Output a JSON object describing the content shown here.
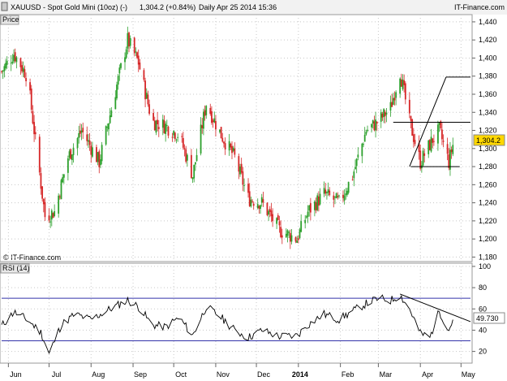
{
  "header": {
    "instrument": "XAUUSD - Spot Gold Mini (10oz) (-)",
    "quote": "1,304.2 (+0.84%)",
    "meta": "Daily  Apr 25 2014 15:36",
    "source": "IT-Finance.com"
  },
  "price_panel": {
    "label": "Price",
    "watermark": "© IT-Finance.com"
  },
  "rsi_panel": {
    "label": "RSI (14)"
  },
  "colors": {
    "up": "#2ca02c",
    "down": "#d62728",
    "badge_price": "#ffd700",
    "rsi_line": "#000000",
    "rsi_levels": "#3333aa",
    "grid": "#c8c8c8",
    "axis_text": "#000000"
  },
  "chart_data": [
    {
      "type": "candlestick",
      "title": "XAUUSD - Spot Gold Mini (10oz) (-)",
      "panel": "Price",
      "y_ticks": [
        "1,180",
        "1,200",
        "1,220",
        "1,240",
        "1,260",
        "1,280",
        "1,300",
        "1,320",
        "1,340",
        "1,360",
        "1,380",
        "1,400",
        "1,420",
        "1,440"
      ],
      "ylim": [
        1175,
        1448
      ],
      "x_ticks": [
        "Jun",
        "Jul",
        "Aug",
        "Sep",
        "Oct",
        "Nov",
        "Dec",
        "2014",
        "Feb",
        "Mar",
        "Apr",
        "May"
      ],
      "last_value": "1,304.2",
      "series_close_anchor": [
        [
          "2013-05-27",
          1385
        ],
        [
          "2013-06-05",
          1405
        ],
        [
          "2013-06-15",
          1380
        ],
        [
          "2013-06-20",
          1320
        ],
        [
          "2013-06-28",
          1225
        ],
        [
          "2013-07-05",
          1230
        ],
        [
          "2013-07-15",
          1290
        ],
        [
          "2013-07-25",
          1320
        ],
        [
          "2013-08-07",
          1285
        ],
        [
          "2013-08-20",
          1370
        ],
        [
          "2013-08-28",
          1420
        ],
        [
          "2013-09-05",
          1395
        ],
        [
          "2013-09-15",
          1330
        ],
        [
          "2013-09-25",
          1325
        ],
        [
          "2013-10-05",
          1315
        ],
        [
          "2013-10-15",
          1270
        ],
        [
          "2013-10-25",
          1350
        ],
        [
          "2013-11-05",
          1315
        ],
        [
          "2013-11-15",
          1290
        ],
        [
          "2013-11-25",
          1245
        ],
        [
          "2013-12-05",
          1240
        ],
        [
          "2013-12-18",
          1210
        ],
        [
          "2013-12-31",
          1200
        ],
        [
          "2014-01-08",
          1230
        ],
        [
          "2014-01-20",
          1250
        ],
        [
          "2014-01-31",
          1240
        ],
        [
          "2014-02-10",
          1270
        ],
        [
          "2014-02-20",
          1320
        ],
        [
          "2014-03-01",
          1330
        ],
        [
          "2014-03-10",
          1345
        ],
        [
          "2014-03-17",
          1385
        ],
        [
          "2014-03-24",
          1330
        ],
        [
          "2014-04-01",
          1285
        ],
        [
          "2014-04-10",
          1310
        ],
        [
          "2014-04-15",
          1320
        ],
        [
          "2014-04-22",
          1285
        ],
        [
          "2014-04-25",
          1304
        ]
      ],
      "annotations": [
        {
          "kind": "hline",
          "y": 1329,
          "x_from": "2014-03-12",
          "x_to": "2014-05-08"
        },
        {
          "kind": "hline",
          "y": 1280,
          "x_from": "2014-03-25",
          "x_to": "2014-04-30"
        },
        {
          "kind": "hline",
          "y": 1379,
          "x_from": "2014-04-20",
          "x_to": "2014-05-08"
        },
        {
          "kind": "trendline",
          "from": [
            "2014-03-24",
            1280
          ],
          "to": [
            "2014-04-20",
            1379
          ]
        }
      ]
    },
    {
      "type": "line",
      "title": "RSI (14)",
      "panel": "RSI",
      "y_ticks": [
        "20",
        "40",
        "60",
        "80",
        "100"
      ],
      "ylim": [
        9,
        103
      ],
      "levels": [
        70,
        30
      ],
      "last_value": "49.730",
      "series": [
        {
          "name": "RSI (14)",
          "anchor": [
            [
              "2013-05-27",
              44
            ],
            [
              "2013-06-05",
              57
            ],
            [
              "2013-06-15",
              50
            ],
            [
              "2013-06-25",
              38
            ],
            [
              "2013-07-01",
              18
            ],
            [
              "2013-07-10",
              45
            ],
            [
              "2013-07-20",
              55
            ],
            [
              "2013-08-01",
              50
            ],
            [
              "2013-08-15",
              60
            ],
            [
              "2013-08-28",
              68
            ],
            [
              "2013-09-05",
              62
            ],
            [
              "2013-09-15",
              45
            ],
            [
              "2013-09-25",
              43
            ],
            [
              "2013-10-05",
              52
            ],
            [
              "2013-10-15",
              35
            ],
            [
              "2013-10-25",
              62
            ],
            [
              "2013-11-05",
              52
            ],
            [
              "2013-11-15",
              40
            ],
            [
              "2013-11-25",
              33
            ],
            [
              "2013-12-05",
              40
            ],
            [
              "2013-12-18",
              34
            ],
            [
              "2013-12-31",
              35
            ],
            [
              "2014-01-08",
              45
            ],
            [
              "2014-01-20",
              55
            ],
            [
              "2014-01-31",
              50
            ],
            [
              "2014-02-10",
              58
            ],
            [
              "2014-02-20",
              65
            ],
            [
              "2014-03-01",
              70
            ],
            [
              "2014-03-10",
              68
            ],
            [
              "2014-03-17",
              73
            ],
            [
              "2014-03-24",
              60
            ],
            [
              "2014-04-01",
              37
            ],
            [
              "2014-04-08",
              33
            ],
            [
              "2014-04-15",
              58
            ],
            [
              "2014-04-22",
              40
            ],
            [
              "2014-04-25",
              50
            ]
          ]
        }
      ],
      "annotations": [
        {
          "kind": "trendline",
          "from": [
            "2014-03-17",
            74
          ],
          "to": [
            "2014-05-08",
            48
          ]
        }
      ]
    }
  ]
}
